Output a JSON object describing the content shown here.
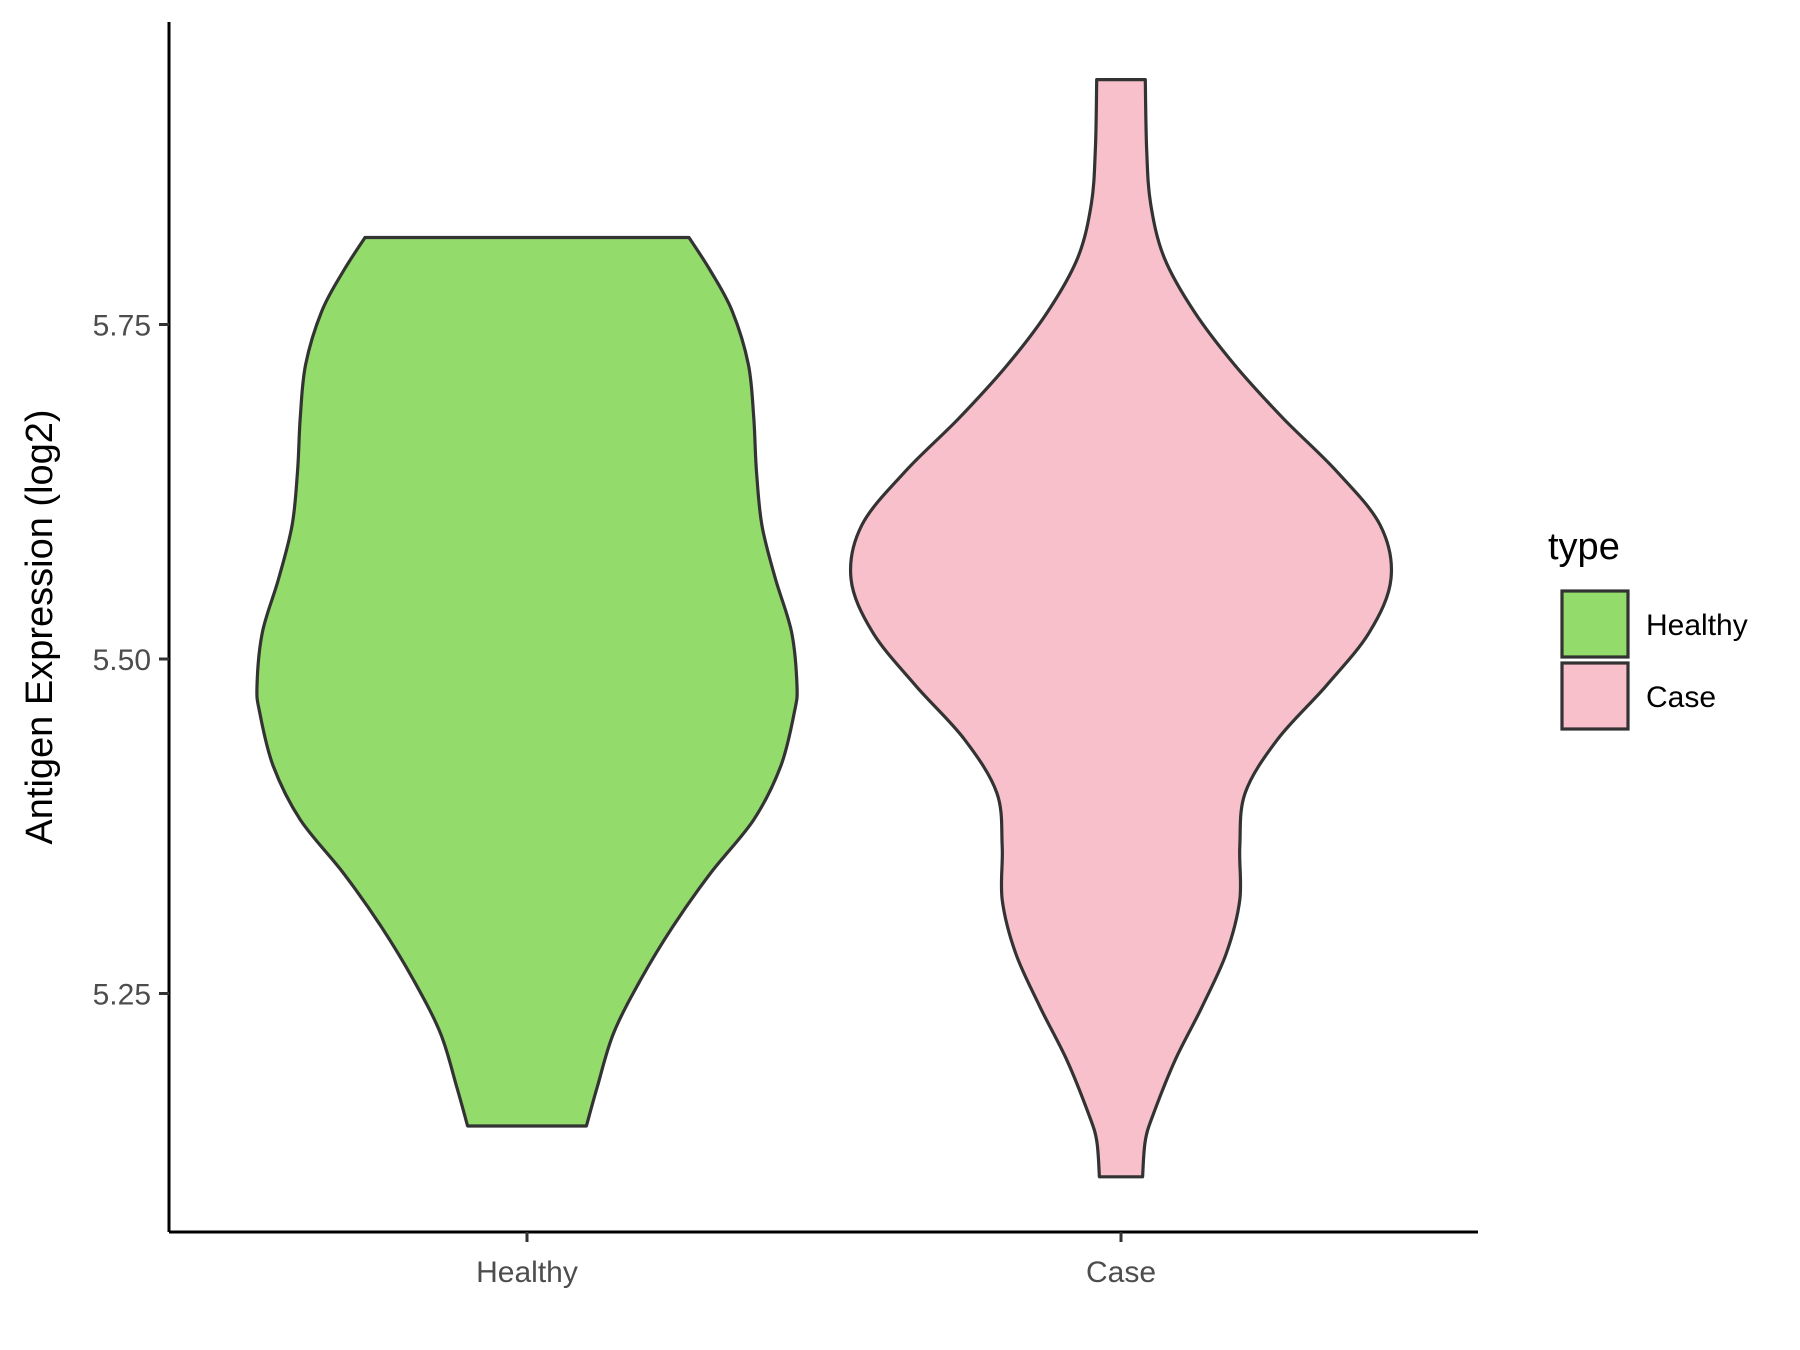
{
  "chart_data": {
    "type": "violin",
    "xlabel": "",
    "ylabel": "Antigen Expression (log2)",
    "categories": [
      "Healthy",
      "Case"
    ],
    "yticks": [
      "5.25",
      "5.50",
      "5.75"
    ],
    "ytick_values": [
      5.25,
      5.5,
      5.75
    ],
    "ylim": [
      5.07,
      5.97
    ],
    "legend": {
      "title": "type",
      "position": "right",
      "items": [
        {
          "label": "Healthy",
          "color": "#93dc6b"
        },
        {
          "label": "Case",
          "color": "#f7c0cb"
        }
      ]
    },
    "series": [
      {
        "category": "Healthy",
        "color": "#93dc6b",
        "min": 5.151,
        "max": 5.815,
        "density_max_halfwidth": 1.0,
        "profile": [
          [
            5.151,
            0.22
          ],
          [
            5.18,
            0.26
          ],
          [
            5.22,
            0.32
          ],
          [
            5.26,
            0.42
          ],
          [
            5.3,
            0.54
          ],
          [
            5.34,
            0.68
          ],
          [
            5.38,
            0.84
          ],
          [
            5.42,
            0.94
          ],
          [
            5.46,
            0.99
          ],
          [
            5.48,
            1.0
          ],
          [
            5.52,
            0.98
          ],
          [
            5.56,
            0.92
          ],
          [
            5.6,
            0.87
          ],
          [
            5.64,
            0.85
          ],
          [
            5.68,
            0.84
          ],
          [
            5.72,
            0.82
          ],
          [
            5.76,
            0.76
          ],
          [
            5.79,
            0.68
          ],
          [
            5.815,
            0.6
          ]
        ]
      },
      {
        "category": "Case",
        "color": "#f7c0cb",
        "min": 5.113,
        "max": 5.933,
        "density_max_halfwidth": 1.0,
        "profile": [
          [
            5.113,
            0.08
          ],
          [
            5.14,
            0.09
          ],
          [
            5.16,
            0.12
          ],
          [
            5.2,
            0.2
          ],
          [
            5.24,
            0.3
          ],
          [
            5.28,
            0.39
          ],
          [
            5.32,
            0.44
          ],
          [
            5.36,
            0.44
          ],
          [
            5.4,
            0.46
          ],
          [
            5.44,
            0.58
          ],
          [
            5.48,
            0.76
          ],
          [
            5.52,
            0.92
          ],
          [
            5.56,
            1.0
          ],
          [
            5.6,
            0.96
          ],
          [
            5.64,
            0.8
          ],
          [
            5.68,
            0.6
          ],
          [
            5.72,
            0.42
          ],
          [
            5.76,
            0.27
          ],
          [
            5.8,
            0.16
          ],
          [
            5.84,
            0.11
          ],
          [
            5.88,
            0.095
          ],
          [
            5.933,
            0.09
          ]
        ]
      }
    ]
  }
}
